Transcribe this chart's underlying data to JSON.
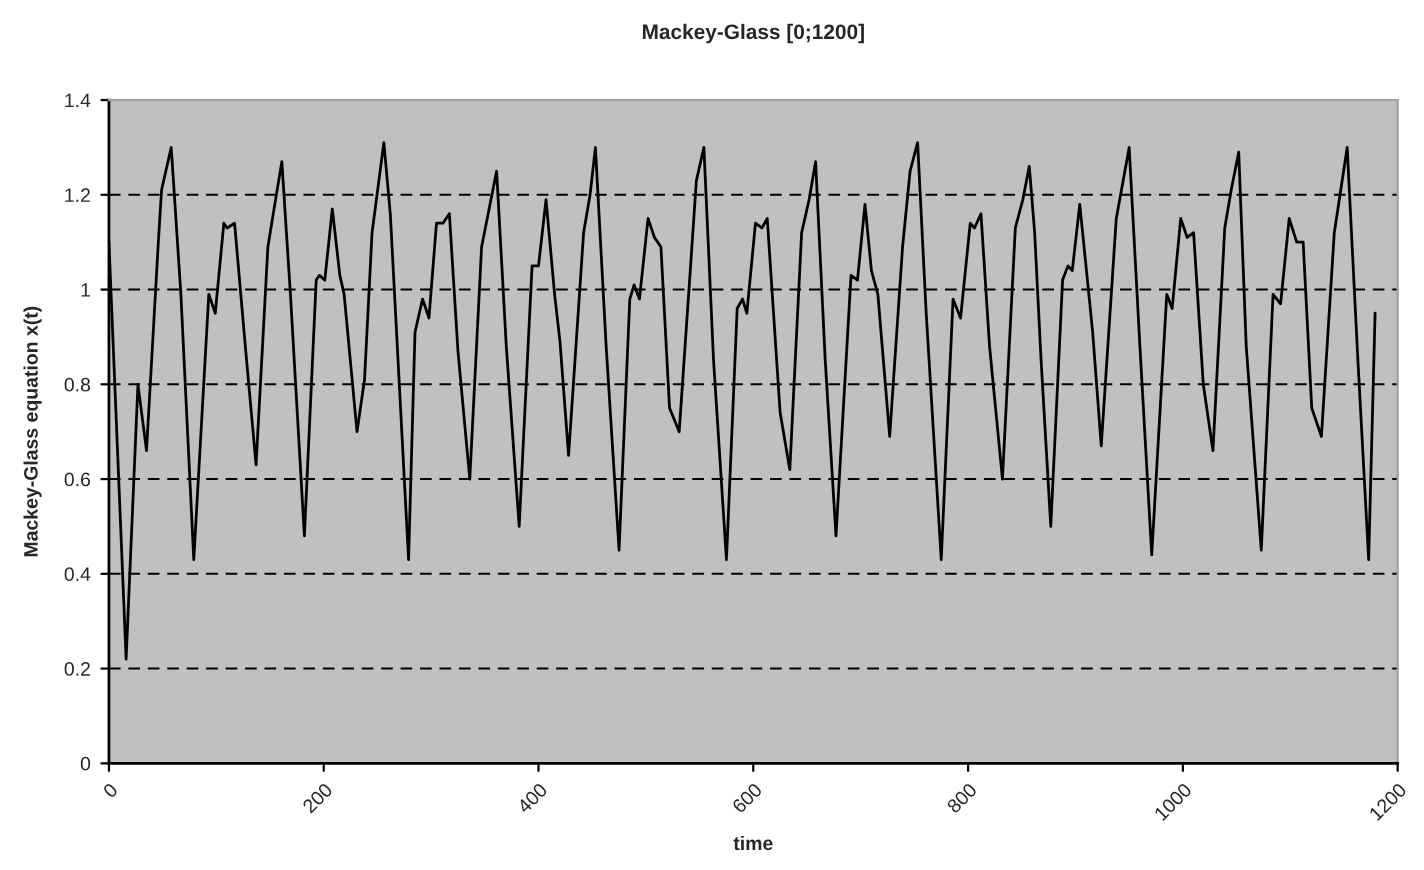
{
  "chart_data": {
    "type": "line",
    "title": "Mackey-Glass [0;1200]",
    "xlabel": "time",
    "ylabel": "Mackey-Glass equation x(t)",
    "xlim": [
      0,
      1200
    ],
    "xticks": [
      0,
      200,
      400,
      600,
      800,
      1000,
      1200
    ],
    "ylim": [
      0,
      1.4
    ],
    "yticks": [
      0,
      0.2,
      0.4,
      0.6,
      0.8,
      1,
      1.2,
      1.4
    ],
    "grid": "y",
    "marker": "none",
    "line_style": "solid",
    "series": [
      {
        "color": "#000000",
        "x": [
          0,
          16,
          27,
          35,
          46,
          49,
          58,
          67,
          79,
          86,
          93,
          99,
          107,
          110,
          117,
          127,
          137,
          148,
          153,
          161,
          169,
          182,
          193,
          196,
          201,
          208,
          215,
          219,
          231,
          238,
          245,
          256,
          262,
          279,
          285,
          292,
          298,
          305,
          311,
          317,
          325,
          336,
          347,
          354,
          361,
          370,
          382,
          394,
          400,
          407,
          415,
          420,
          428,
          442,
          448,
          453,
          463,
          475,
          485,
          489,
          494,
          502,
          508,
          514,
          522,
          531,
          541,
          547,
          554,
          563,
          575,
          585,
          590,
          594,
          602,
          608,
          613,
          625,
          634,
          645,
          652,
          658,
          667,
          677,
          691,
          697,
          704,
          710,
          716,
          727,
          739,
          746,
          753,
          761,
          775,
          786,
          793,
          802,
          806,
          812,
          820,
          832,
          844,
          851,
          857,
          862,
          868,
          877,
          888,
          893,
          897,
          904,
          916,
          924,
          938,
          950,
          960,
          971,
          985,
          990,
          998,
          1004,
          1010,
          1019,
          1028,
          1039,
          1045,
          1052,
          1059,
          1073,
          1084,
          1091,
          1099,
          1106,
          1112,
          1120,
          1129,
          1141,
          1153,
          1163,
          1173,
          1179
        ],
        "values": [
          1.1,
          0.22,
          0.8,
          0.66,
          1.1,
          1.21,
          1.3,
          0.99,
          0.43,
          0.71,
          0.99,
          0.95,
          1.14,
          1.13,
          1.14,
          0.88,
          0.63,
          1.09,
          1.16,
          1.27,
          0.99,
          0.48,
          1.02,
          1.03,
          1.02,
          1.17,
          1.03,
          0.99,
          0.7,
          0.81,
          1.12,
          1.31,
          1.16,
          0.43,
          0.91,
          0.98,
          0.94,
          1.14,
          1.14,
          1.16,
          0.87,
          0.6,
          1.09,
          1.17,
          1.25,
          0.88,
          0.5,
          1.05,
          1.05,
          1.19,
          0.99,
          0.89,
          0.65,
          1.12,
          1.2,
          1.3,
          0.88,
          0.45,
          0.98,
          1.01,
          0.98,
          1.15,
          1.11,
          1.09,
          0.75,
          0.7,
          1.03,
          1.23,
          1.3,
          0.85,
          0.43,
          0.96,
          0.98,
          0.95,
          1.14,
          1.13,
          1.15,
          0.74,
          0.62,
          1.12,
          1.19,
          1.27,
          0.85,
          0.48,
          1.03,
          1.02,
          1.18,
          1.04,
          0.99,
          0.69,
          1.09,
          1.25,
          1.31,
          0.95,
          0.43,
          0.98,
          0.94,
          1.14,
          1.13,
          1.16,
          0.88,
          0.6,
          1.13,
          1.19,
          1.26,
          1.12,
          0.85,
          0.5,
          1.02,
          1.05,
          1.04,
          1.18,
          0.91,
          0.67,
          1.15,
          1.3,
          0.88,
          0.44,
          0.99,
          0.96,
          1.15,
          1.11,
          1.12,
          0.8,
          0.66,
          1.13,
          1.21,
          1.29,
          0.88,
          0.45,
          0.99,
          0.97,
          1.15,
          1.1,
          1.1,
          0.75,
          0.69,
          1.12,
          1.3,
          0.85,
          0.43,
          0.95
        ]
      }
    ]
  }
}
